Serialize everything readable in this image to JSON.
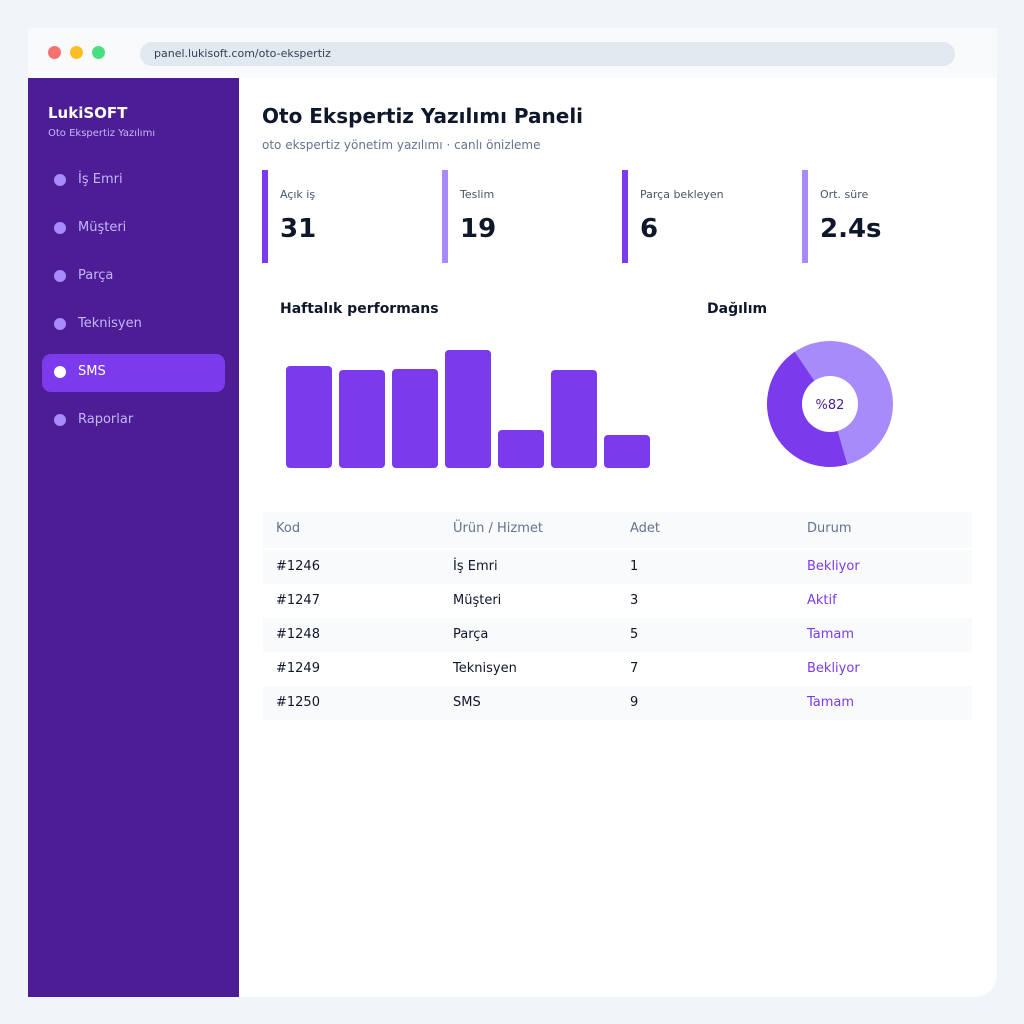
{
  "browser": {
    "url": "panel.lukisoft.com/oto-ekspertiz"
  },
  "sidebar": {
    "brand": "LukiSOFT",
    "subtitle": "Oto Ekspertiz Yazılımı",
    "items": [
      "İş Emri",
      "Müşteri",
      "Parça",
      "Teknisyen",
      "SMS",
      "Raporlar"
    ],
    "active": 4
  },
  "header": {
    "title": "Oto Ekspertiz Yazılımı Paneli",
    "subtitle": "oto ekspertiz yönetim yazılımı · canlı önizleme"
  },
  "stats": [
    {
      "label": "Açık iş",
      "value": "31",
      "color": "#7c3aed"
    },
    {
      "label": "Teslim",
      "value": "19",
      "color": "#a78bfa"
    },
    {
      "label": "Parça bekleyen",
      "value": "6",
      "color": "#7c3aed"
    },
    {
      "label": "Ort. süre",
      "value": "2.4s",
      "color": "#a78bfa"
    }
  ],
  "chart_data": [
    {
      "type": "bar",
      "title": "Haftalık performans",
      "values": [
        102,
        98,
        99,
        118,
        38,
        98,
        33
      ],
      "color": "#7c3aed"
    },
    {
      "type": "pie",
      "title": "Dağılım",
      "center_label": "%82",
      "values": [
        55,
        45
      ],
      "colors": [
        "#a78bfa",
        "#7c3aed"
      ]
    }
  ],
  "table": {
    "columns": [
      "Kod",
      "Ürün / Hizmet",
      "Adet",
      "Durum"
    ],
    "rows": [
      [
        "#1246",
        "İş Emri",
        "1",
        "Bekliyor"
      ],
      [
        "#1247",
        "Müşteri",
        "3",
        "Aktif"
      ],
      [
        "#1248",
        "Parça",
        "5",
        "Tamam"
      ],
      [
        "#1249",
        "Teknisyen",
        "7",
        "Bekliyor"
      ],
      [
        "#1250",
        "SMS",
        "9",
        "Tamam"
      ]
    ]
  }
}
